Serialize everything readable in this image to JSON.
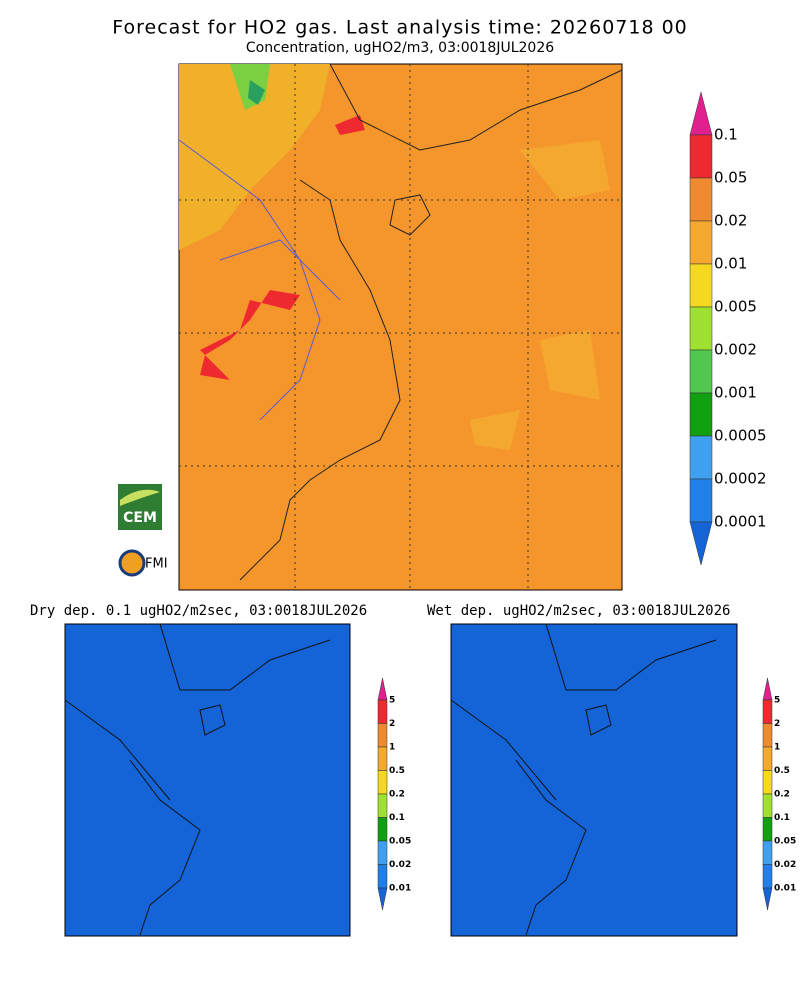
{
  "header": {
    "title": "Forecast for HO2 gas. Last analysis time: 20260718 00",
    "subtitle": "Concentration, ugHO2/m3, 03:0018JUL2026"
  },
  "main_map": {
    "colorbar_labels": [
      "0.1",
      "0.05",
      "0.02",
      "0.01",
      "0.005",
      "0.002",
      "0.001",
      "0.0005",
      "0.0002",
      "0.0001"
    ]
  },
  "logos": {
    "cem": "CEM",
    "fmi": "FMI"
  },
  "panels": [
    {
      "title": "Dry dep. 0.1 ugHO2/m2sec, 03:0018JUL2026",
      "colorbar_labels": [
        "5",
        "2",
        "1",
        "0.5",
        "0.2",
        "0.1",
        "0.05",
        "0.02",
        "0.01"
      ]
    },
    {
      "title": "Wet dep. ugHO2/m2sec, 03:0018JUL2026",
      "colorbar_labels": [
        "5",
        "2",
        "1",
        "0.5",
        "0.2",
        "0.1",
        "0.05",
        "0.02",
        "0.01"
      ]
    }
  ]
}
